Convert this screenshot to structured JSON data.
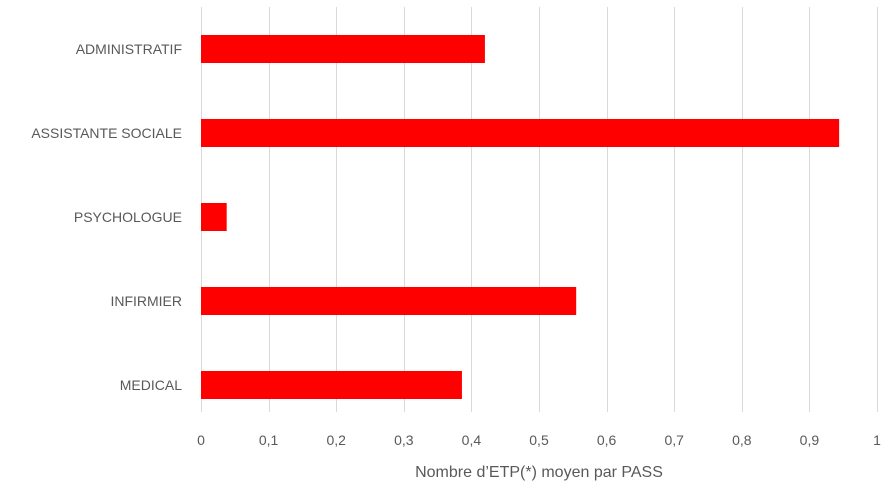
{
  "chart_data": {
    "type": "bar",
    "orientation": "horizontal",
    "categories": [
      "ADMINISTRATIF",
      "ASSISTANTE SOCIALE",
      "PSYCHOLOGUE",
      "INFIRMIER",
      "MEDICAL"
    ],
    "values": [
      0.42,
      0.944,
      0.038,
      0.555,
      0.386
    ],
    "xlabel": "Nombre d’ETP(*) moyen par PASS",
    "ylabel": "",
    "xlim": [
      0,
      1
    ],
    "x_ticks": [
      0,
      0.1,
      0.2,
      0.3,
      0.4,
      0.5,
      0.6,
      0.7,
      0.8,
      0.9,
      1
    ],
    "x_tick_labels": [
      "0",
      "0,1",
      "0,2",
      "0,3",
      "0,4",
      "0,5",
      "0,6",
      "0,7",
      "0,8",
      "0,9",
      "1"
    ],
    "grid": "vertical",
    "legend": "none",
    "bar_color": "#ff0000",
    "grid_color": "#d9d9d9",
    "text_color": "#595959"
  }
}
